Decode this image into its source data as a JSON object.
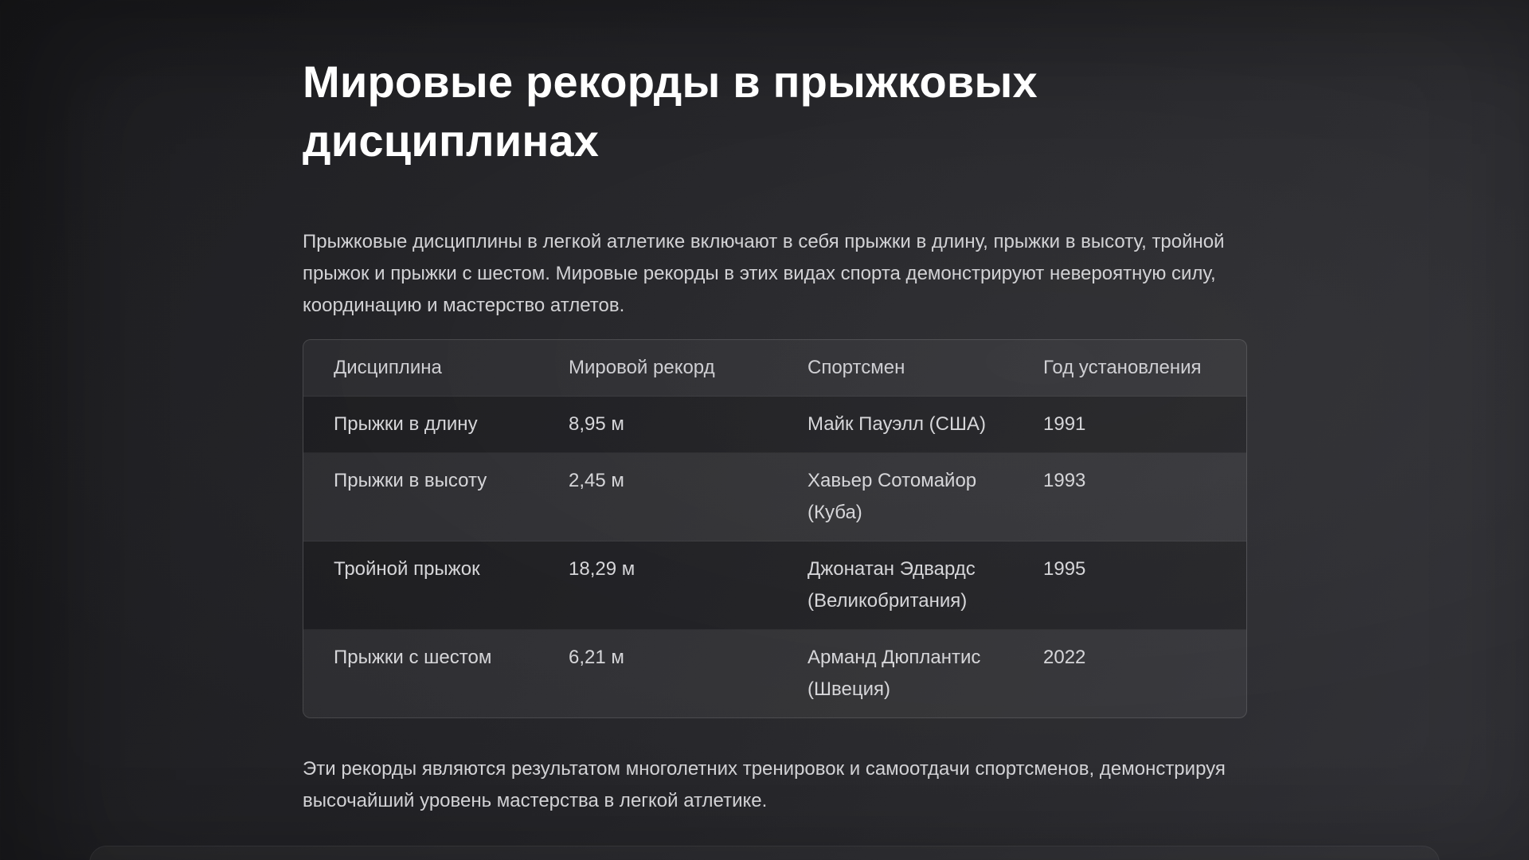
{
  "page": {
    "title": "Мировые рекорды в прыжковых дисциплинах",
    "intro": "Прыжковые дисциплины в легкой атлетике включают в себя прыжки в длину, прыжки в высоту, тройной прыжок и прыжки с шестом. Мировые рекорды в этих видах спорта демонстрируют невероятную силу, координацию и мастерство атлетов.",
    "outro": "Эти рекорды являются результатом многолетних тренировок и самоотдачи спортсменов, демонстрируя высочайший уровень мастерства в легкой атлетике."
  },
  "table": {
    "columns": [
      "Дисциплина",
      "Мировой рекорд",
      "Спортсмен",
      "Год установления"
    ],
    "rows": [
      [
        "Прыжки в длину",
        "8,95 м",
        "Майк Пауэлл (США)",
        "1991"
      ],
      [
        "Прыжки в высоту",
        "2,45 м",
        "Хавьер Сотомайор (Куба)",
        "1993"
      ],
      [
        "Тройной прыжок",
        "18,29 м",
        "Джонатан Эдвардс (Великобритания)",
        "1995"
      ],
      [
        "Прыжки с шестом",
        "6,21 м",
        "Арманд Дюплантис (Швеция)",
        "2022"
      ]
    ]
  },
  "colors": {
    "background_start": "#1c1c1f",
    "background_end": "#313136",
    "title_text": "#ffffff",
    "body_text": "#d2d2d5",
    "table_border": "rgba(255,255,255,0.16)",
    "row_dark": "rgba(0,0,0,0.17)",
    "row_light": "rgba(255,255,255,0.045)"
  }
}
